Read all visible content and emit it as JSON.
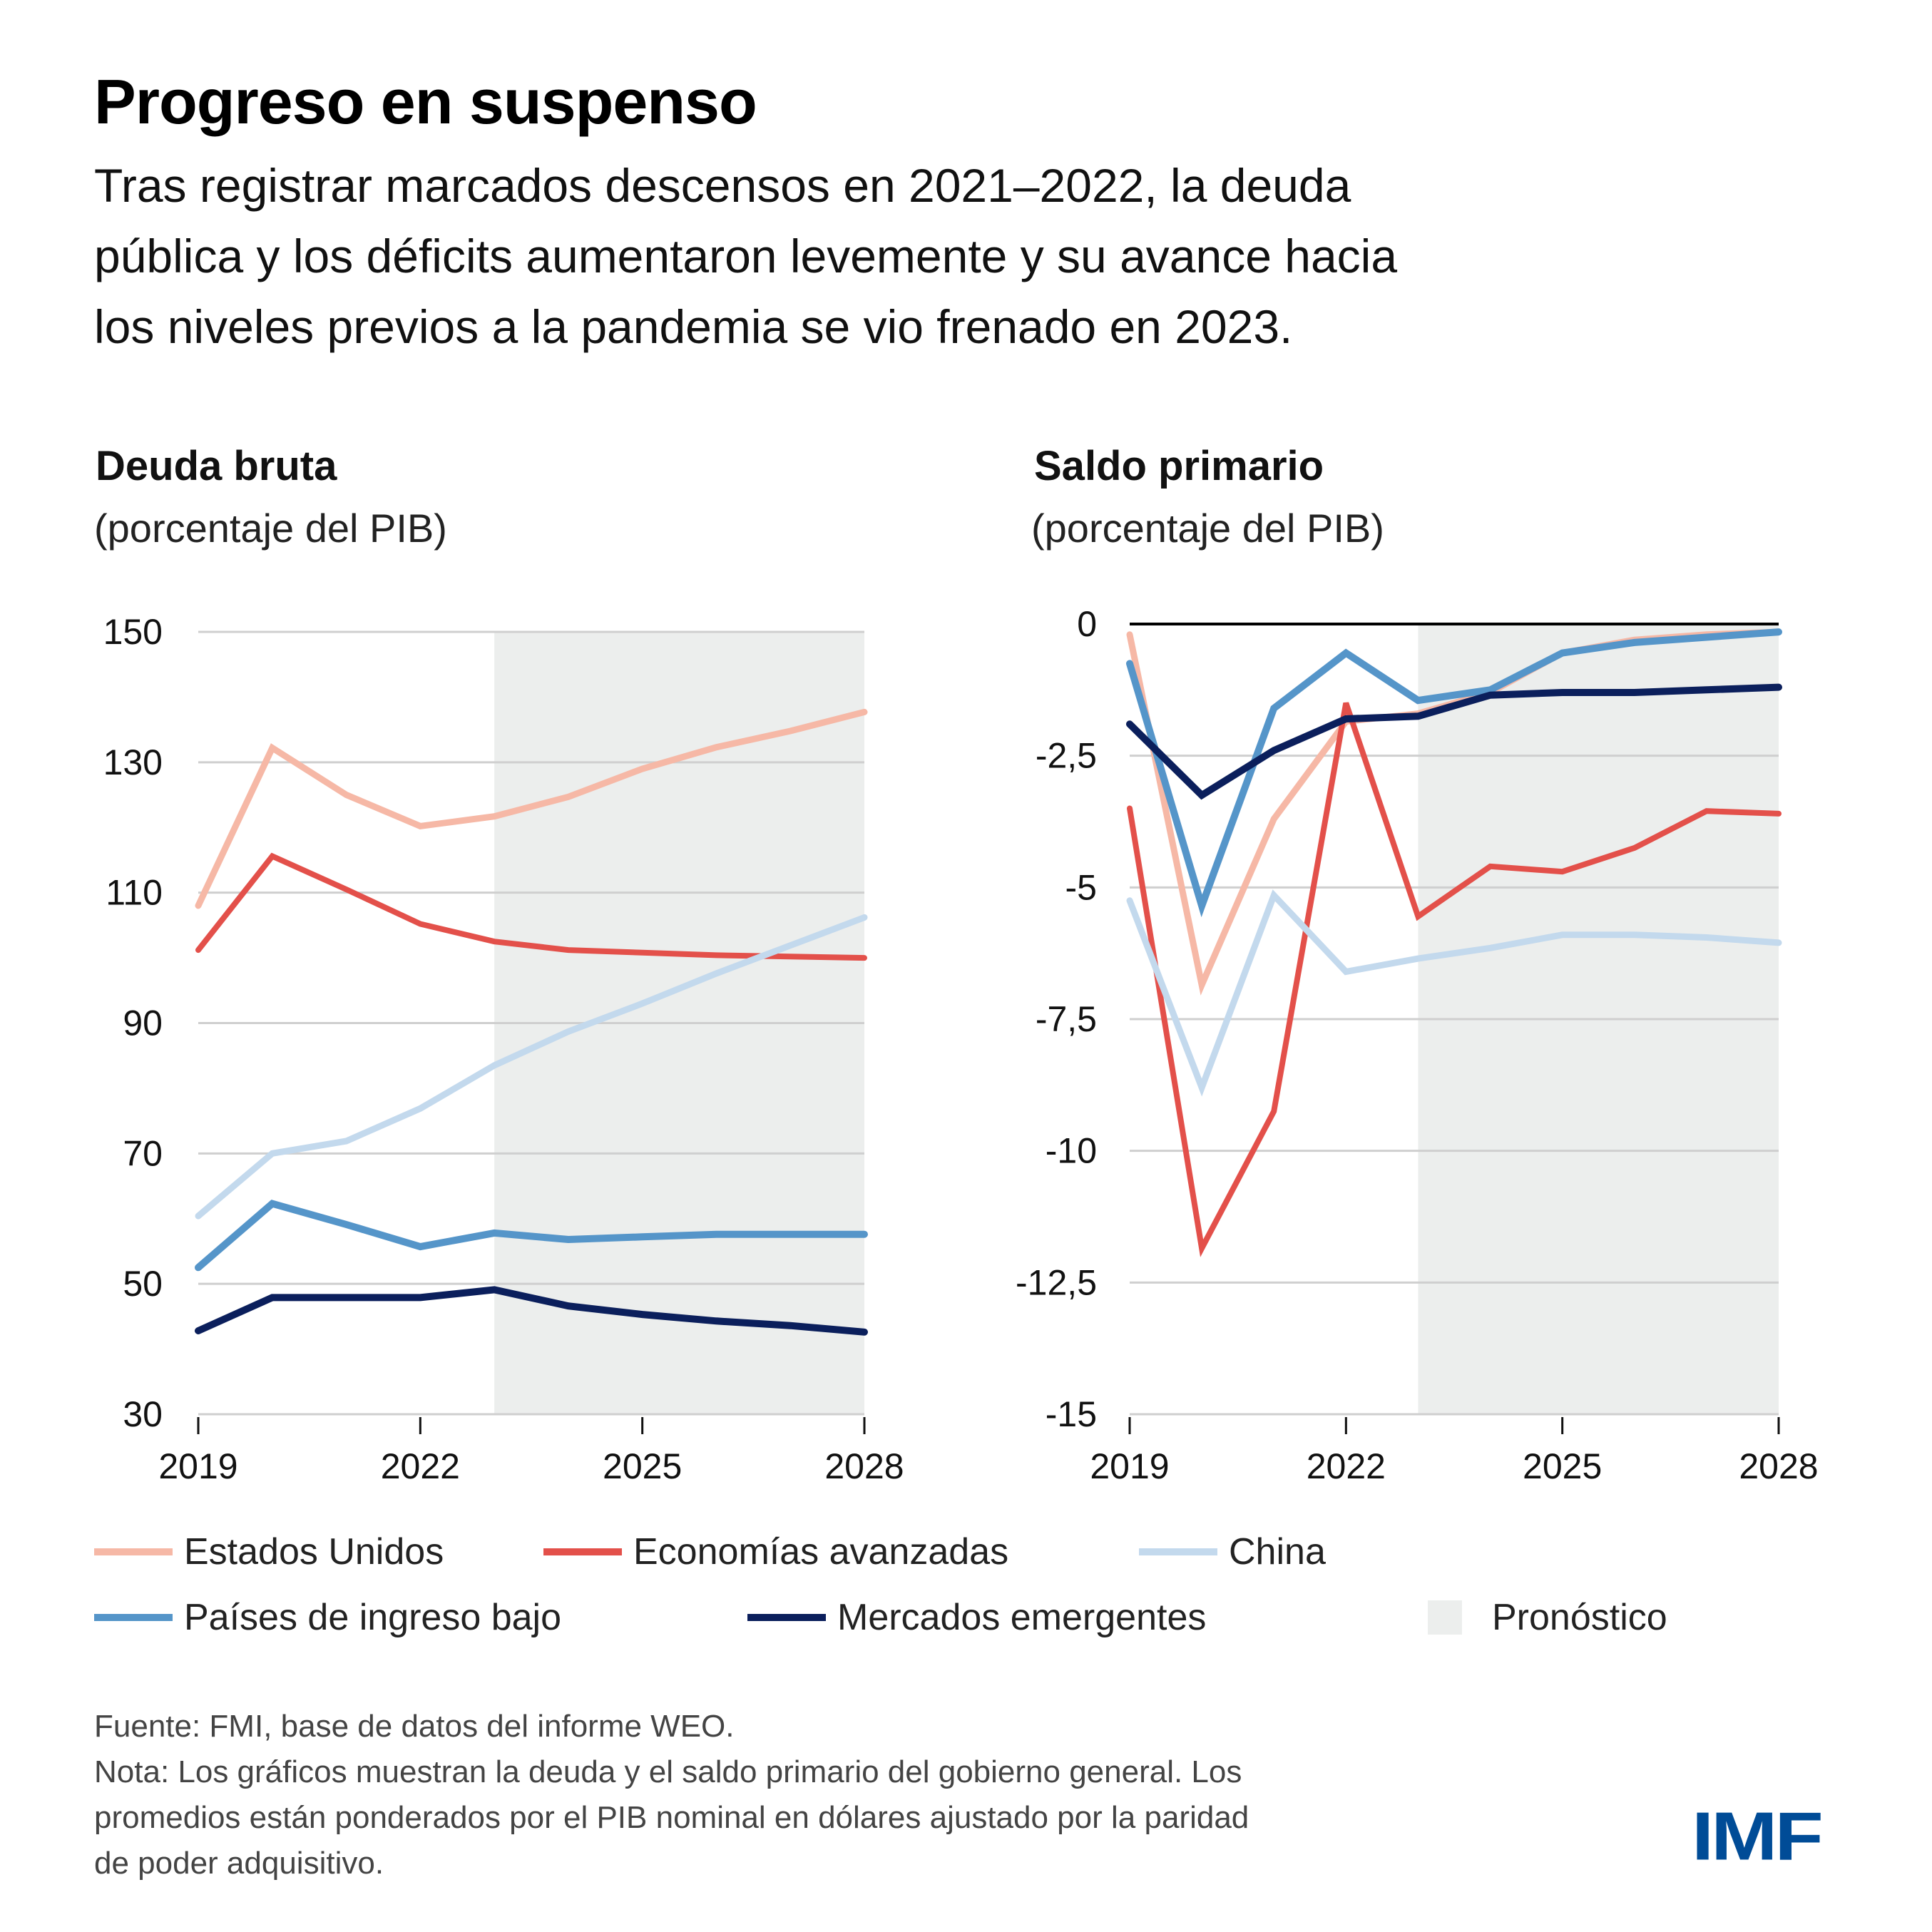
{
  "header": {
    "title": "Progreso en suspenso",
    "subtitle_lines": [
      "Tras registrar marcados descensos en 2021–2022, la deuda",
      "pública y los déficits aumentaron levemente y su avance hacia",
      "los niveles previos a la pandemia se vio frenado en 2023."
    ]
  },
  "colors": {
    "estados_unidos": "#f6b8a6",
    "economias_avanzadas": "#e3504a",
    "china": "#c3d9ed",
    "paises_ingreso_bajo": "#5595c9",
    "mercados_emergentes": "#0b1f5c",
    "forecast_shade": "#eceeed",
    "gridline": "#cfcfcf",
    "imf_blue": "#004c97"
  },
  "chart_data": [
    {
      "type": "line",
      "title": "Deuda bruta",
      "subtitle": "(porcentaje del PIB)",
      "xlabel": "",
      "ylabel": "porcentaje del PIB",
      "x": [
        2019,
        2020,
        2021,
        2022,
        2023,
        2024,
        2025,
        2026,
        2027,
        2028
      ],
      "x_ticks": [
        2019,
        2022,
        2025,
        2028
      ],
      "x_tick_labels": [
        "2019",
        "2022",
        "2025",
        "2028"
      ],
      "ylim": [
        30,
        150
      ],
      "y_ticks": [
        30,
        50,
        70,
        90,
        110,
        130,
        150
      ],
      "y_tick_labels": [
        "30",
        "50",
        "70",
        "90",
        "110",
        "130",
        "150"
      ],
      "grid": true,
      "forecast_start": 2023,
      "series": [
        {
          "key": "estados_unidos",
          "name": "Estados Unidos",
          "values": [
            108,
            132.2,
            125,
            120.2,
            121.7,
            124.7,
            129,
            132.3,
            134.8,
            137.7
          ]
        },
        {
          "key": "economias_avanzadas",
          "name": "Economías avanzadas",
          "values": [
            101.2,
            115.6,
            110.5,
            105.2,
            102.5,
            101.2,
            100.8,
            100.4,
            100.2,
            100
          ]
        },
        {
          "key": "china",
          "name": "China",
          "values": [
            60.4,
            70,
            71.9,
            76.9,
            83.5,
            88.7,
            93,
            97.6,
            101.9,
            106.2
          ]
        },
        {
          "key": "paises_ingreso_bajo",
          "name": "Países de ingreso bajo",
          "values": [
            52.5,
            62.3,
            59.1,
            55.7,
            57.8,
            56.8,
            57.2,
            57.6,
            57.6,
            57.6
          ]
        },
        {
          "key": "mercados_emergentes",
          "name": "Mercados emergentes",
          "values": [
            42.8,
            47.9,
            47.9,
            47.9,
            49.1,
            46.6,
            45.3,
            44.3,
            43.6,
            42.6
          ]
        }
      ]
    },
    {
      "type": "line",
      "title": "Saldo primario",
      "subtitle": "(porcentaje del PIB)",
      "xlabel": "",
      "ylabel": "porcentaje del PIB",
      "x": [
        2019,
        2020,
        2021,
        2022,
        2023,
        2024,
        2025,
        2026,
        2027,
        2028
      ],
      "x_ticks": [
        2019,
        2022,
        2025,
        2028
      ],
      "x_tick_labels": [
        "2019",
        "2022",
        "2025",
        "2028"
      ],
      "ylim": [
        -15,
        0
      ],
      "y_ticks": [
        -15,
        -12.5,
        -10,
        -7.5,
        -5,
        -2.5,
        0
      ],
      "y_tick_labels": [
        "-15",
        "-12,5",
        "-10",
        "-7,5",
        "-5",
        "-2,5",
        "0"
      ],
      "grid": true,
      "zero_line": true,
      "forecast_start": 2023,
      "series": [
        {
          "key": "estados_unidos",
          "name": "Estados Unidos",
          "values": [
            -0.2,
            -6.85,
            -3.7,
            -1.85,
            -1.7,
            -1.3,
            -0.55,
            -0.3,
            -0.2,
            -0.15
          ]
        },
        {
          "key": "economias_avanzadas",
          "name": "Economías avanzadas",
          "values": [
            -3.5,
            -11.85,
            -9.25,
            -1.5,
            -5.55,
            -4.6,
            -4.7,
            -4.25,
            -3.55,
            -3.6
          ]
        },
        {
          "key": "china",
          "name": "China",
          "values": [
            -5.25,
            -8.8,
            -5.15,
            -6.6,
            -6.35,
            -6.15,
            -5.9,
            -5.9,
            -5.95,
            -6.05
          ]
        },
        {
          "key": "paises_ingreso_bajo",
          "name": "Países de ingreso bajo",
          "values": [
            -0.75,
            -5.35,
            -1.6,
            -0.55,
            -1.45,
            -1.25,
            -0.55,
            -0.35,
            -0.25,
            -0.15
          ]
        },
        {
          "key": "mercados_emergentes",
          "name": "Mercados emergentes",
          "values": [
            -1.9,
            -3.25,
            -2.4,
            -1.8,
            -1.75,
            -1.35,
            -1.3,
            -1.3,
            -1.25,
            -1.2
          ]
        }
      ]
    }
  ],
  "legend": {
    "items": [
      {
        "key": "estados_unidos",
        "label": "Estados Unidos"
      },
      {
        "key": "economias_avanzadas",
        "label": "Economías avanzadas"
      },
      {
        "key": "china",
        "label": "China"
      },
      {
        "key": "paises_ingreso_bajo",
        "label": "Países de ingreso bajo"
      },
      {
        "key": "mercados_emergentes",
        "label": "Mercados emergentes"
      }
    ],
    "forecast_label": "Pronóstico"
  },
  "footer": {
    "source": "Fuente: FMI, base de datos del informe WEO.",
    "note_lines": [
      "Nota: Los gráficos muestran la deuda y el saldo primario del gobierno general. Los",
      "promedios están ponderados por el PIB nominal en dólares ajustado por la paridad",
      "de poder adquisitivo."
    ]
  },
  "logo": {
    "text": "IMF"
  }
}
